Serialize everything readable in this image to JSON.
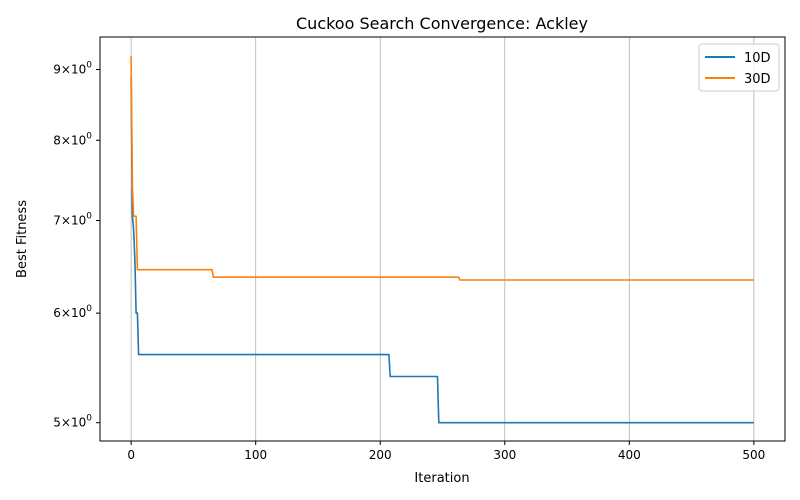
{
  "chart_data": {
    "type": "line",
    "title": "Cuckoo Search Convergence: Ackley",
    "xlabel": "Iteration",
    "ylabel": "Best Fitness",
    "xlim": [
      -25,
      525
    ],
    "ylim": [
      4.85,
      9.5
    ],
    "yscale": "log",
    "grid": "x-only",
    "legend_position": "top-right",
    "x_ticks": [
      0,
      100,
      200,
      300,
      400,
      500
    ],
    "x_tick_labels": [
      "0",
      "100",
      "200",
      "300",
      "400",
      "500"
    ],
    "y_ticks": [
      5,
      6,
      7,
      8,
      9
    ],
    "y_tick_labels": [
      {
        "base": "5",
        "times": "×",
        "pow": "10",
        "exp": "0"
      },
      {
        "base": "6",
        "times": "×",
        "pow": "10",
        "exp": "0"
      },
      {
        "base": "7",
        "times": "×",
        "pow": "10",
        "exp": "0"
      },
      {
        "base": "8",
        "times": "×",
        "pow": "10",
        "exp": "0"
      },
      {
        "base": "9",
        "times": "×",
        "pow": "10",
        "exp": "0"
      }
    ],
    "series": [
      {
        "name": "10D",
        "color": "#1f77b4",
        "points": [
          [
            0,
            8.9
          ],
          [
            1,
            7.05
          ],
          [
            2,
            6.9
          ],
          [
            3,
            6.55
          ],
          [
            4,
            6.0
          ],
          [
            5,
            6.0
          ],
          [
            6,
            5.6
          ],
          [
            7,
            5.6
          ],
          [
            207,
            5.6
          ],
          [
            208,
            5.4
          ],
          [
            246,
            5.4
          ],
          [
            247,
            5.0
          ],
          [
            500,
            5.0
          ]
        ]
      },
      {
        "name": "30D",
        "color": "#ff7f0e",
        "points": [
          [
            0,
            9.2
          ],
          [
            1,
            7.4
          ],
          [
            2,
            7.05
          ],
          [
            4,
            7.05
          ],
          [
            5,
            6.45
          ],
          [
            65,
            6.45
          ],
          [
            66,
            6.37
          ],
          [
            263,
            6.37
          ],
          [
            264,
            6.34
          ],
          [
            500,
            6.34
          ]
        ]
      }
    ]
  }
}
